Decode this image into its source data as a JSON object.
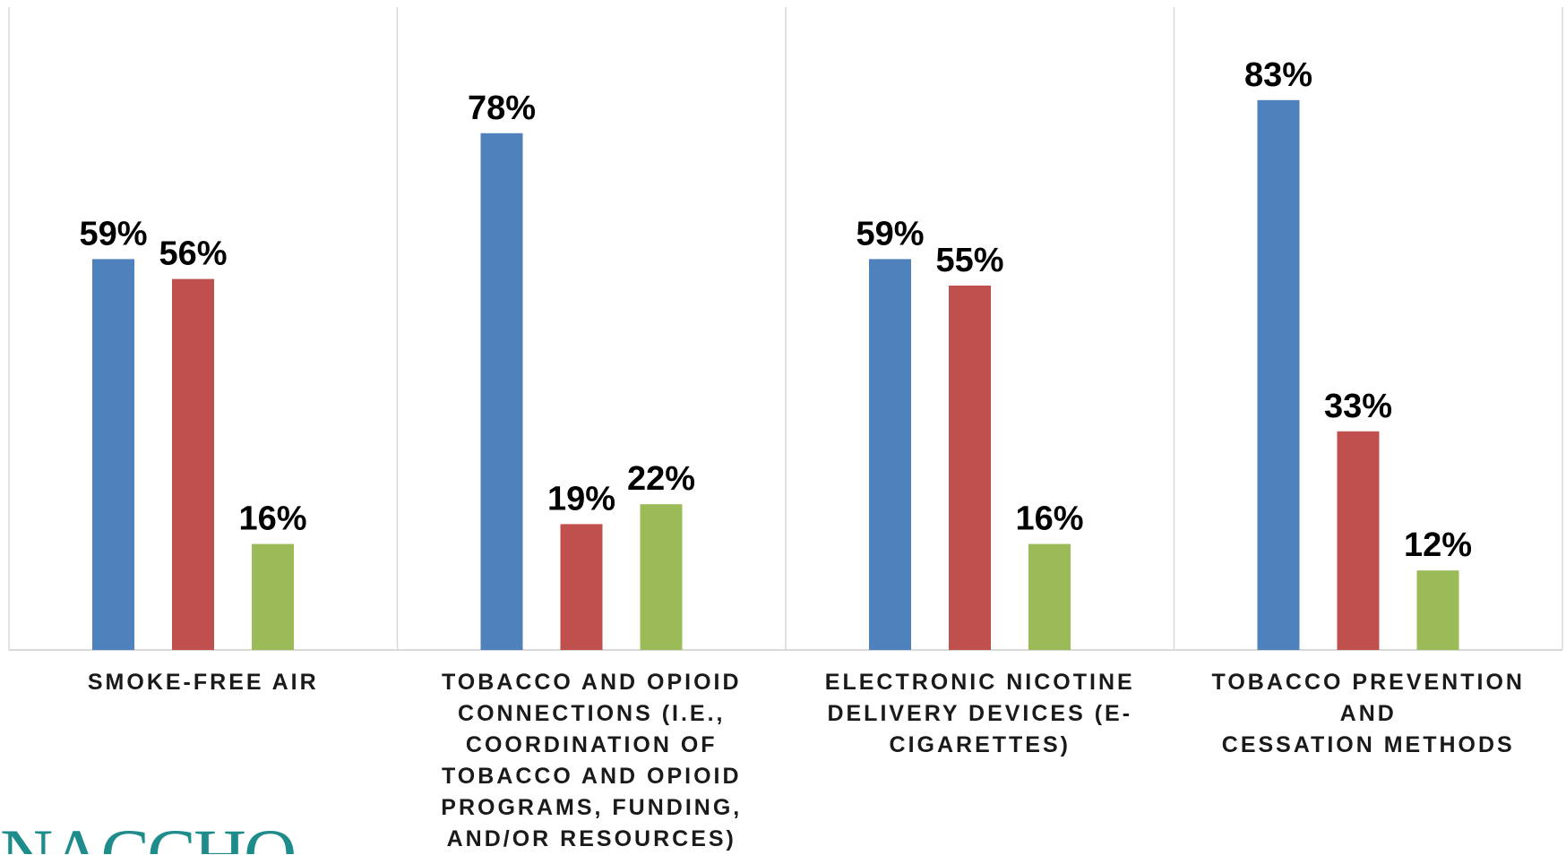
{
  "chart_data": {
    "type": "bar",
    "categories": [
      "SMOKE-FREE AIR",
      "TOBACCO AND OPIOID CONNECTIONS (I.E., COORDINATION OF TOBACCO AND OPIOID PROGRAMS, FUNDING, AND/OR RESOURCES)",
      "ELECTRONIC NICOTINE DELIVERY DEVICES (E-CIGARETTES)",
      "TOBACCO PREVENTION AND CESSATION METHODS"
    ],
    "category_lines": [
      [
        "SMOKE-FREE AIR"
      ],
      [
        "TOBACCO AND OPIOID",
        "CONNECTIONS (I.E.,",
        "COORDINATION OF",
        "TOBACCO AND OPIOID",
        "PROGRAMS, FUNDING,",
        "AND/OR RESOURCES)"
      ],
      [
        "ELECTRONIC NICOTINE",
        "DELIVERY DEVICES (E-",
        "CIGARETTES)"
      ],
      [
        "TOBACCO PREVENTION AND",
        "CESSATION METHODS"
      ]
    ],
    "series": [
      {
        "values": [
          59,
          78,
          59,
          83
        ],
        "color": "#4F81BD"
      },
      {
        "values": [
          56,
          19,
          55,
          33
        ],
        "color": "#C0504D"
      },
      {
        "values": [
          16,
          22,
          16,
          12
        ],
        "color": "#9BBB59"
      }
    ],
    "value_labels": [
      [
        "59%",
        "78%",
        "59%",
        "83%"
      ],
      [
        "56%",
        "19%",
        "55%",
        "33%"
      ],
      [
        "16%",
        "22%",
        "16%",
        "12%"
      ]
    ],
    "ylim": [
      0,
      90
    ],
    "grid": false,
    "legend": "none",
    "category_dividers": true
  },
  "logo": {
    "text": "NACCHO",
    "color": "#1f8c8c"
  }
}
